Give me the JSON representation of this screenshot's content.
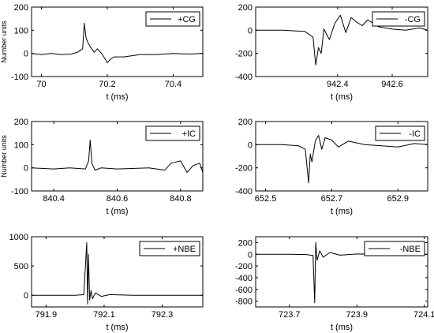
{
  "figure": {
    "background": "#ffffff",
    "axis_color": "#000000",
    "line_color": "#000000"
  },
  "chart_data": [
    {
      "type": "line",
      "title": "",
      "xlabel": "t (ms)",
      "ylabel": "Number units",
      "xlim": [
        69.97,
        70.49
      ],
      "ylim": [
        -100,
        200
      ],
      "xticks": [
        70,
        70.2,
        70.4
      ],
      "xtick_labels": [
        "70",
        "70.2",
        "70.4"
      ],
      "yticks": [
        -100,
        0,
        100,
        200
      ],
      "ytick_labels": [
        "-100",
        "0",
        "100",
        "200"
      ],
      "legend": "top-right",
      "series": [
        {
          "name": "+CG",
          "color": "#000000",
          "x": [
            69.97,
            70.0,
            70.03,
            70.06,
            70.09,
            70.11,
            70.125,
            70.13,
            70.135,
            70.14,
            70.15,
            70.16,
            70.17,
            70.185,
            70.2,
            70.21,
            70.22,
            70.25,
            70.3,
            70.35,
            70.4,
            70.45,
            70.49
          ],
          "y": [
            0,
            -5,
            0,
            -5,
            -3,
            5,
            20,
            130,
            70,
            50,
            25,
            5,
            20,
            -5,
            -40,
            -25,
            -15,
            -15,
            -5,
            -5,
            0,
            -3,
            0
          ]
        }
      ]
    },
    {
      "type": "line",
      "title": "",
      "xlabel": "t (ms)",
      "ylabel": "",
      "xlim": [
        942.1,
        942.73
      ],
      "ylim": [
        -400,
        200
      ],
      "xticks": [
        942.4,
        942.6
      ],
      "xtick_labels": [
        "942.4",
        "942.6"
      ],
      "yticks": [
        -400,
        -200,
        0,
        200
      ],
      "ytick_labels": [
        "-400",
        "-200",
        "0",
        "200"
      ],
      "legend": "top-right",
      "series": [
        {
          "name": "-CG",
          "color": "#000000",
          "x": [
            942.1,
            942.2,
            942.28,
            942.31,
            942.32,
            942.33,
            942.34,
            942.35,
            942.37,
            942.39,
            942.41,
            942.43,
            942.45,
            942.47,
            942.49,
            942.51,
            942.55,
            942.6,
            942.65,
            942.7,
            942.73
          ],
          "y": [
            0,
            0,
            -10,
            -60,
            -300,
            -150,
            -200,
            10,
            -80,
            60,
            130,
            -20,
            110,
            70,
            40,
            90,
            30,
            10,
            0,
            20,
            0
          ]
        }
      ]
    },
    {
      "type": "line",
      "title": "",
      "xlabel": "t (ms)",
      "ylabel": "Number units",
      "xlim": [
        840.33,
        840.87
      ],
      "ylim": [
        -100,
        200
      ],
      "xticks": [
        840.4,
        840.6,
        840.8
      ],
      "xtick_labels": [
        "840.4",
        "840.6",
        "840.8"
      ],
      "yticks": [
        -100,
        0,
        100,
        200
      ],
      "ytick_labels": [
        "-100",
        "0",
        "100",
        "200"
      ],
      "legend": "top-right",
      "series": [
        {
          "name": "+IC",
          "color": "#000000",
          "x": [
            840.33,
            840.4,
            840.45,
            840.5,
            840.51,
            840.515,
            840.52,
            840.53,
            840.55,
            840.6,
            840.7,
            840.75,
            840.77,
            840.8,
            840.82,
            840.84,
            840.86,
            840.87
          ],
          "y": [
            0,
            -5,
            0,
            -5,
            30,
            120,
            20,
            -10,
            0,
            -5,
            0,
            -10,
            20,
            30,
            -20,
            10,
            20,
            -20
          ]
        }
      ]
    },
    {
      "type": "line",
      "title": "",
      "xlabel": "t (ms)",
      "ylabel": "",
      "xlim": [
        652.47,
        652.99
      ],
      "ylim": [
        -400,
        200
      ],
      "xticks": [
        652.5,
        652.7,
        652.9
      ],
      "xtick_labels": [
        "652.5",
        "652.7",
        "652.9"
      ],
      "yticks": [
        -400,
        -200,
        0,
        200
      ],
      "ytick_labels": [
        "-400",
        "-200",
        "0",
        "200"
      ],
      "legend": "top-right",
      "series": [
        {
          "name": "-IC",
          "color": "#000000",
          "x": [
            652.47,
            652.55,
            652.6,
            652.62,
            652.63,
            652.635,
            652.64,
            652.65,
            652.66,
            652.67,
            652.68,
            652.7,
            652.72,
            652.75,
            652.8,
            652.85,
            652.9,
            652.95,
            652.99
          ],
          "y": [
            0,
            0,
            -10,
            -40,
            -330,
            -80,
            -150,
            30,
            80,
            -40,
            60,
            40,
            -20,
            30,
            0,
            -10,
            -20,
            10,
            0
          ]
        }
      ]
    },
    {
      "type": "line",
      "title": "",
      "xlabel": "t (ms)",
      "ylabel": "",
      "xlim": [
        791.85,
        792.44
      ],
      "ylim": [
        -200,
        1000
      ],
      "xticks": [
        791.9,
        792.1,
        792.3
      ],
      "xtick_labels": [
        "791.9",
        "792.1",
        "792.3"
      ],
      "yticks": [
        0,
        500,
        1000
      ],
      "ytick_labels": [
        "0",
        "500",
        "1000"
      ],
      "legend": "top-right",
      "series": [
        {
          "name": "+NBE",
          "color": "#000000",
          "x": [
            791.85,
            791.95,
            792.0,
            792.03,
            792.04,
            792.043,
            792.046,
            792.05,
            792.055,
            792.06,
            792.07,
            792.09,
            792.12,
            792.2,
            792.3,
            792.44
          ],
          "y": [
            0,
            0,
            0,
            10,
            900,
            -150,
            700,
            -80,
            80,
            -60,
            40,
            -20,
            10,
            0,
            0,
            0
          ]
        }
      ]
    },
    {
      "type": "line",
      "title": "",
      "xlabel": "t (ms)",
      "ylabel": "",
      "xlim": [
        723.6,
        724.11
      ],
      "ylim": [
        -900,
        300
      ],
      "xticks": [
        723.7,
        723.9,
        724.1
      ],
      "xtick_labels": [
        "723.7",
        "723.9",
        "724.1"
      ],
      "yticks": [
        -800,
        -600,
        -400,
        -200,
        0,
        200
      ],
      "ytick_labels": [
        "-800",
        "-600",
        "-400",
        "-200",
        "0",
        "200"
      ],
      "legend": "top-right",
      "series": [
        {
          "name": "-NBE",
          "color": "#000000",
          "x": [
            723.6,
            723.7,
            723.75,
            723.77,
            723.775,
            723.778,
            723.782,
            723.79,
            723.8,
            723.82,
            723.85,
            723.9,
            724.0,
            724.11
          ],
          "y": [
            0,
            0,
            -5,
            -20,
            -830,
            200,
            -100,
            60,
            -50,
            30,
            -15,
            5,
            0,
            0
          ]
        }
      ]
    }
  ]
}
